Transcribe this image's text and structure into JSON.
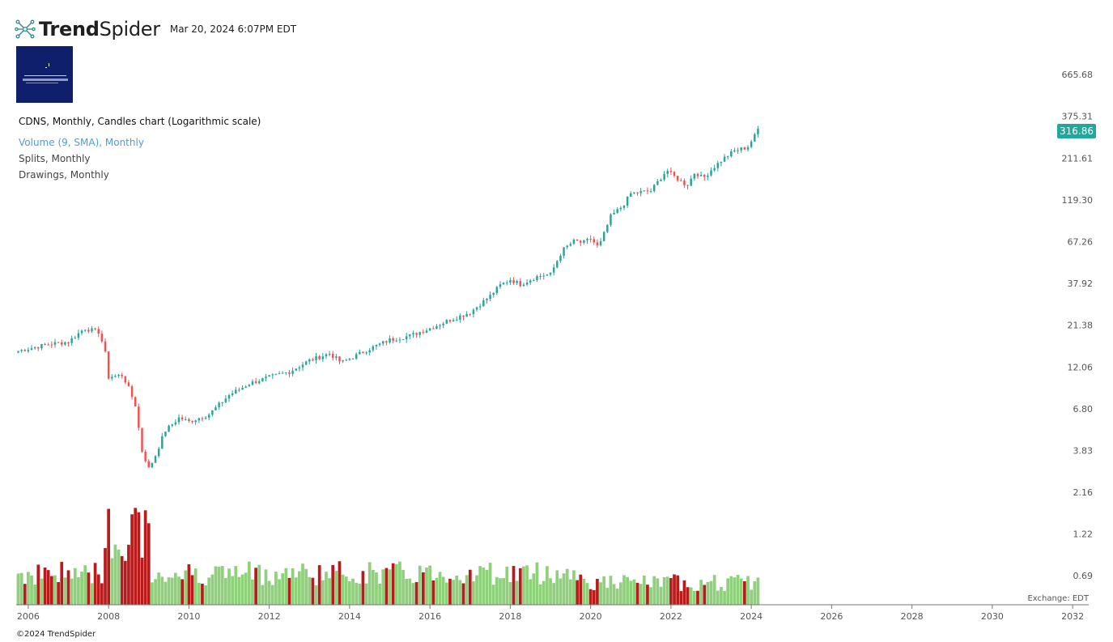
{
  "header": {
    "brand_bold": "Trend",
    "brand_light": "Spider",
    "timestamp": "Mar 20, 2024 6:07PM EDT"
  },
  "legend": {
    "title": "CDNS, Monthly, Candles chart (Logarithmic scale)",
    "volume": "Volume (9, SMA), Monthly",
    "splits": "Splits, Monthly",
    "drawings": "Drawings, Monthly"
  },
  "last_price": "316.86",
  "exchange": "Exchange: EDT",
  "copyright": "©2024 TrendSpider",
  "colors": {
    "up": "#26a69a",
    "down": "#ef5350",
    "vol_up": "#8fd07a",
    "vol_down": "#b71c1c",
    "badge": "#26a69a",
    "logo_bg": "#0f1f6b"
  },
  "chart_data": {
    "type": "candlestick",
    "ticker": "CDNS",
    "timeframe": "Monthly",
    "scale": "log",
    "y_ticks": [
      "665.68",
      "375.31",
      "211.61",
      "119.30",
      "67.26",
      "37.92",
      "21.38",
      "12.06",
      "6.80",
      "3.83",
      "2.16",
      "1.22",
      "0.69"
    ],
    "x_ticks": [
      "2006",
      "2008",
      "2010",
      "2012",
      "2014",
      "2016",
      "2018",
      "2020",
      "2022",
      "2024",
      "2026",
      "2028",
      "2030",
      "2032"
    ],
    "xlim": [
      2005.7,
      2032.4
    ],
    "ylim": [
      0.5,
      950
    ],
    "close_anchors": [
      [
        2005.75,
        15.0
      ],
      [
        2006.5,
        16.5
      ],
      [
        2007.0,
        17.0
      ],
      [
        2007.4,
        20.5
      ],
      [
        2007.75,
        19.5
      ],
      [
        2007.9,
        15.5
      ],
      [
        2008.0,
        10.5
      ],
      [
        2008.35,
        10.8
      ],
      [
        2008.5,
        9.0
      ],
      [
        2008.7,
        6.8
      ],
      [
        2008.8,
        4.0
      ],
      [
        2009.0,
        3.0
      ],
      [
        2009.15,
        3.5
      ],
      [
        2009.4,
        5.0
      ],
      [
        2009.75,
        6.0
      ],
      [
        2010.0,
        5.7
      ],
      [
        2010.5,
        6.3
      ],
      [
        2011.0,
        8.2
      ],
      [
        2011.5,
        9.6
      ],
      [
        2012.0,
        10.5
      ],
      [
        2012.5,
        11.3
      ],
      [
        2013.0,
        13.2
      ],
      [
        2013.5,
        14.5
      ],
      [
        2013.8,
        12.8
      ],
      [
        2014.5,
        15.5
      ],
      [
        2015.0,
        17.5
      ],
      [
        2015.5,
        18.5
      ],
      [
        2016.0,
        20.5
      ],
      [
        2016.5,
        23.0
      ],
      [
        2017.0,
        25.5
      ],
      [
        2017.5,
        32.0
      ],
      [
        2017.75,
        37.0
      ],
      [
        2018.0,
        40.0
      ],
      [
        2018.25,
        37.5
      ],
      [
        2018.7,
        42.0
      ],
      [
        2019.0,
        43.0
      ],
      [
        2019.3,
        60.0
      ],
      [
        2019.6,
        68.0
      ],
      [
        2019.8,
        66.0
      ],
      [
        2020.0,
        70.0
      ],
      [
        2020.2,
        62.0
      ],
      [
        2020.5,
        95.0
      ],
      [
        2020.8,
        110.0
      ],
      [
        2021.0,
        130.0
      ],
      [
        2021.5,
        135.0
      ],
      [
        2021.9,
        180.0
      ],
      [
        2022.0,
        170.0
      ],
      [
        2022.4,
        145.0
      ],
      [
        2022.6,
        175.0
      ],
      [
        2022.8,
        160.0
      ],
      [
        2023.0,
        180.0
      ],
      [
        2023.3,
        210.0
      ],
      [
        2023.6,
        235.0
      ],
      [
        2023.9,
        245.0
      ],
      [
        2024.2,
        316.86
      ]
    ],
    "volume_ylim": [
      0,
      1
    ]
  }
}
